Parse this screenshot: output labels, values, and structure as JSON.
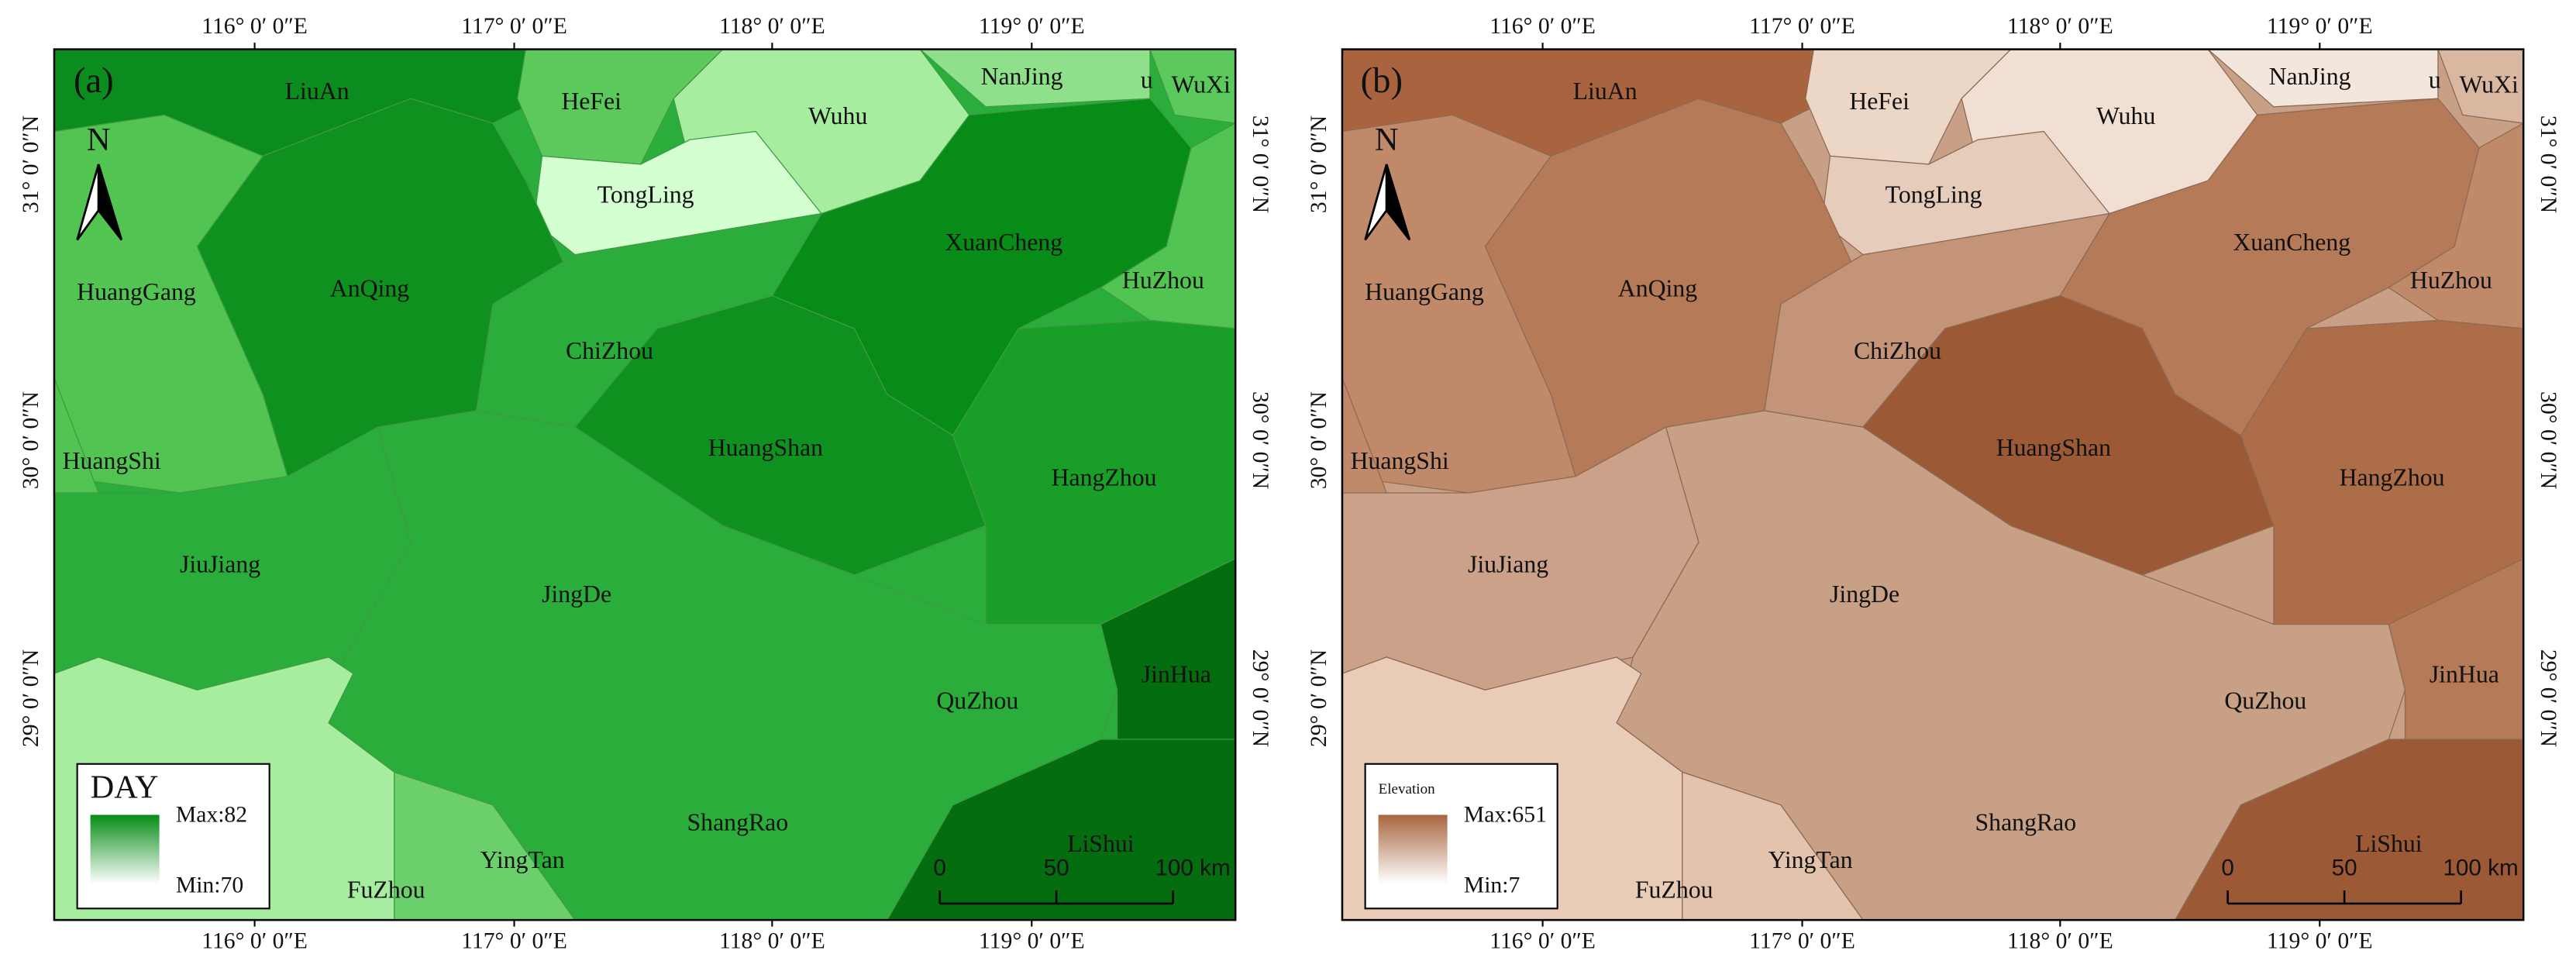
{
  "graticule": {
    "lon": [
      "116° 0′ 0″E",
      "117° 0′ 0″E",
      "118° 0′ 0″E",
      "119° 0′ 0″E"
    ],
    "lat": [
      "31° 0′ 0″N",
      "30° 0′ 0″N",
      "29° 0′ 0″N"
    ]
  },
  "cities": [
    "LiuAn",
    "HeFei",
    "NanJing",
    "u",
    "WuXi",
    "Wuhu",
    "TongLing",
    "XuanCheng",
    "AnQing",
    "HuangGang",
    "HuZhou",
    "ChiZhou",
    "HuangShan",
    "HuangShi",
    "HangZhou",
    "JiuJiang",
    "JingDe",
    "JinHua",
    "QuZhou",
    "ShangRao",
    "LiShui",
    "YingTan",
    "FuZhou"
  ],
  "panels": [
    {
      "label": "(a)",
      "north": "N",
      "legend": {
        "title": "DAY",
        "max": "Max:82",
        "min": "Min:70"
      },
      "scale": [
        "0",
        "50",
        "100 km"
      ]
    },
    {
      "label": "(b)",
      "north": "N",
      "legend": {
        "title": "Elevation",
        "max": "Max:651",
        "min": "Min:7"
      },
      "scale": [
        "0",
        "50",
        "100 km"
      ]
    }
  ]
}
